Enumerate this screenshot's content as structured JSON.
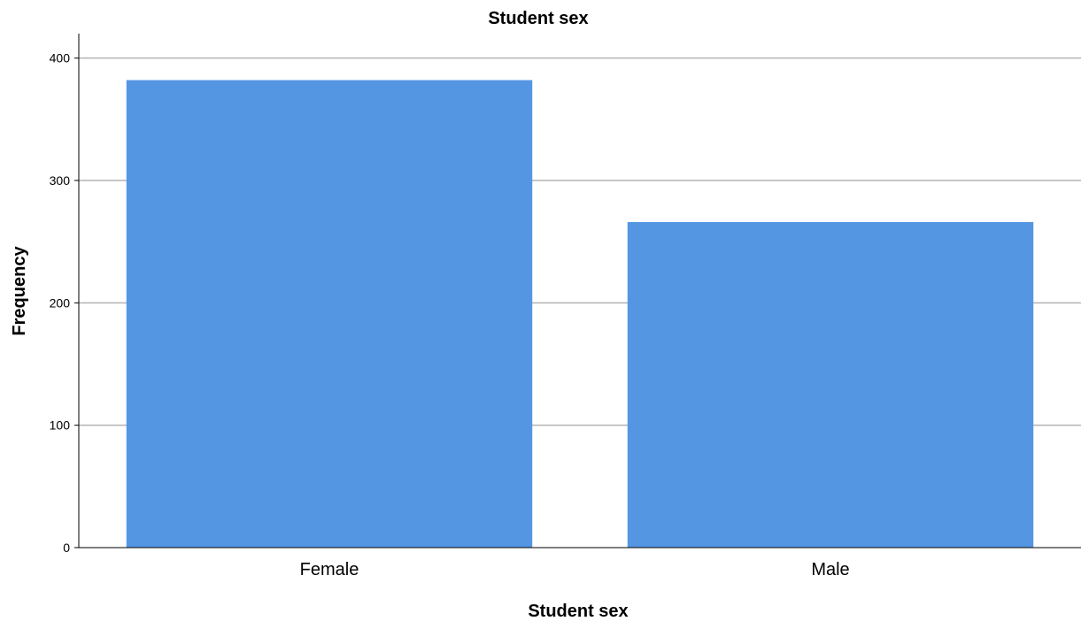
{
  "chart_data": {
    "type": "bar",
    "title": "Student sex",
    "xlabel": "Student sex",
    "ylabel": "Frequency",
    "categories": [
      "Female",
      "Male"
    ],
    "values": [
      382,
      266
    ],
    "ylim": [
      0,
      420
    ],
    "yticks": [
      0,
      100,
      200,
      300,
      400
    ],
    "grid": true,
    "bar_color": "#5596e3"
  }
}
